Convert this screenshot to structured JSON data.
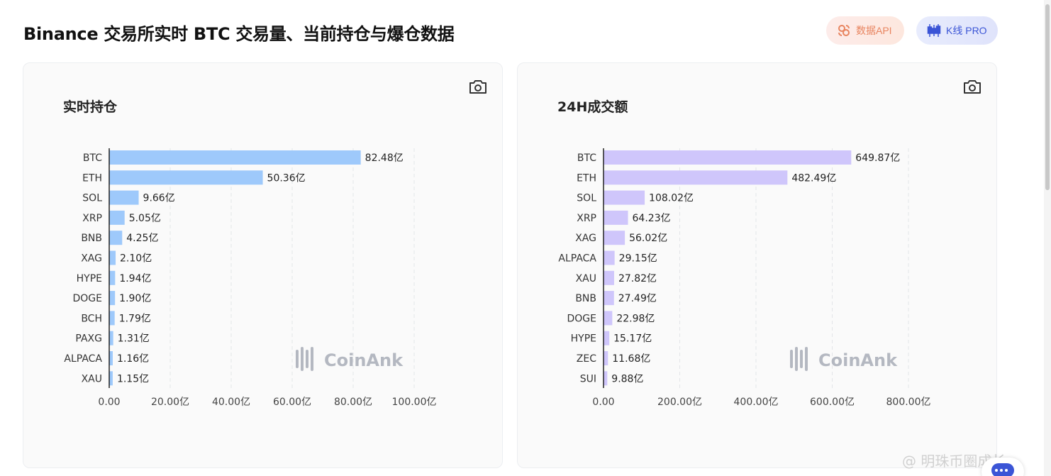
{
  "header": {
    "title": "Binance 交易所实时 BTC 交易量、当前持仓与爆仓数据",
    "api_button": "数据API",
    "kline_button": "K线 PRO"
  },
  "watermark": "CoinAnk",
  "corner_text": "@ 明珠币圈成长",
  "colors": {
    "oi_bar": "#9ec9fb",
    "volume_bar": "#cfc6fb",
    "api_accent": "#e8845f",
    "kline_accent": "#3b55d6"
  },
  "chart_data": [
    {
      "type": "bar",
      "orientation": "horizontal",
      "title": "实时持仓",
      "categories": [
        "BTC",
        "ETH",
        "SOL",
        "XRP",
        "BNB",
        "XAG",
        "HYPE",
        "DOGE",
        "BCH",
        "PAXG",
        "ALPACA",
        "XAU"
      ],
      "values": [
        82.48,
        50.36,
        9.66,
        5.05,
        4.25,
        2.1,
        1.94,
        1.9,
        1.79,
        1.31,
        1.16,
        1.15
      ],
      "value_labels": [
        "82.48亿",
        "50.36亿",
        "9.66亿",
        "5.05亿",
        "4.25亿",
        "2.10亿",
        "1.94亿",
        "1.90亿",
        "1.79亿",
        "1.31亿",
        "1.16亿",
        "1.15亿"
      ],
      "xlim": [
        0,
        100
      ],
      "xticks": [
        0,
        20,
        40,
        60,
        80,
        100
      ],
      "xtick_labels": [
        "0.00",
        "20.00亿",
        "40.00亿",
        "60.00亿",
        "80.00亿",
        "100.00亿"
      ],
      "grid": "vertical-dashed",
      "color": "#9ec9fb"
    },
    {
      "type": "bar",
      "orientation": "horizontal",
      "title": "24H成交额",
      "categories": [
        "BTC",
        "ETH",
        "SOL",
        "XRP",
        "XAG",
        "ALPACA",
        "XAU",
        "BNB",
        "DOGE",
        "HYPE",
        "ZEC",
        "SUI"
      ],
      "values": [
        649.87,
        482.49,
        108.02,
        64.23,
        56.02,
        29.15,
        27.82,
        27.49,
        22.98,
        15.17,
        11.68,
        9.88
      ],
      "value_labels": [
        "649.87亿",
        "482.49亿",
        "108.02亿",
        "64.23亿",
        "56.02亿",
        "29.15亿",
        "27.82亿",
        "27.49亿",
        "22.98亿",
        "15.17亿",
        "11.68亿",
        "9.88亿"
      ],
      "xlim": [
        0,
        800
      ],
      "xticks": [
        0,
        200,
        400,
        600,
        800
      ],
      "xtick_labels": [
        "0.00",
        "200.00亿",
        "400.00亿",
        "600.00亿",
        "800.00亿"
      ],
      "grid": "vertical-dashed",
      "color": "#cfc6fb"
    }
  ]
}
